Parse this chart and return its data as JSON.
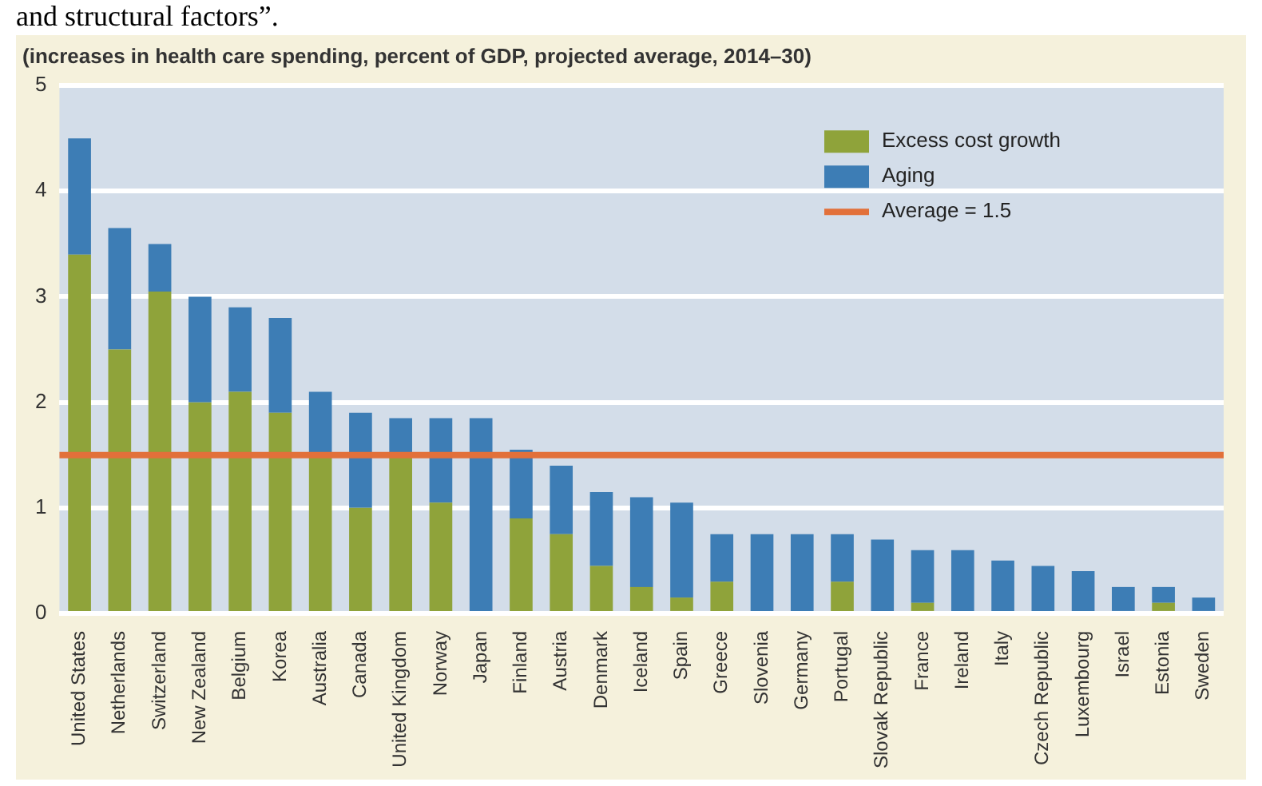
{
  "chart_data": {
    "type": "bar",
    "title": "(increases in health care spending, percent of GDP, projected average, 2014–30)",
    "annotations": [
      "and structural factors”."
    ],
    "categories": [
      "United States",
      "Netherlands",
      "Switzerland",
      "New Zealand",
      "Belgium",
      "Korea",
      "Australia",
      "Canada",
      "United Kingdom",
      "Norway",
      "Japan",
      "Finland",
      "Austria",
      "Denmark",
      "Iceland",
      "Spain",
      "Greece",
      "Slovenia",
      "Germany",
      "Portugal",
      "Slovak Republic",
      "France",
      "Ireland",
      "Italy",
      "Czech Republic",
      "Luxembourg",
      "Israel",
      "Estonia",
      "Sweden"
    ],
    "stacked": true,
    "series": [
      {
        "name": "Excess cost growth",
        "color": "#8fa33a",
        "values": [
          3.4,
          2.5,
          3.05,
          2.0,
          2.1,
          1.9,
          1.5,
          1.0,
          1.5,
          1.05,
          0,
          0.9,
          0.75,
          0.45,
          0.25,
          0.15,
          0.3,
          0,
          0,
          0.3,
          0,
          0.1,
          0,
          0,
          0,
          0,
          0,
          0.1,
          0
        ]
      },
      {
        "name": "Aging",
        "color": "#3d7db5",
        "values": [
          1.1,
          1.15,
          0.45,
          1.0,
          0.8,
          0.9,
          0.6,
          0.9,
          0.35,
          0.8,
          1.85,
          0.65,
          0.65,
          0.7,
          0.85,
          0.9,
          0.45,
          0.75,
          0.75,
          0.45,
          0.7,
          0.5,
          0.6,
          0.5,
          0.45,
          0.4,
          0.25,
          0.15,
          0.15
        ]
      }
    ],
    "ref_lines": [
      {
        "axis": "y",
        "value": 1.5,
        "label": "Average = 1.5",
        "color": "#e2703a"
      }
    ],
    "ylim": [
      0,
      5
    ],
    "yticks": [
      0,
      1,
      2,
      3,
      4,
      5
    ],
    "grid": "y",
    "legend": "top right"
  }
}
